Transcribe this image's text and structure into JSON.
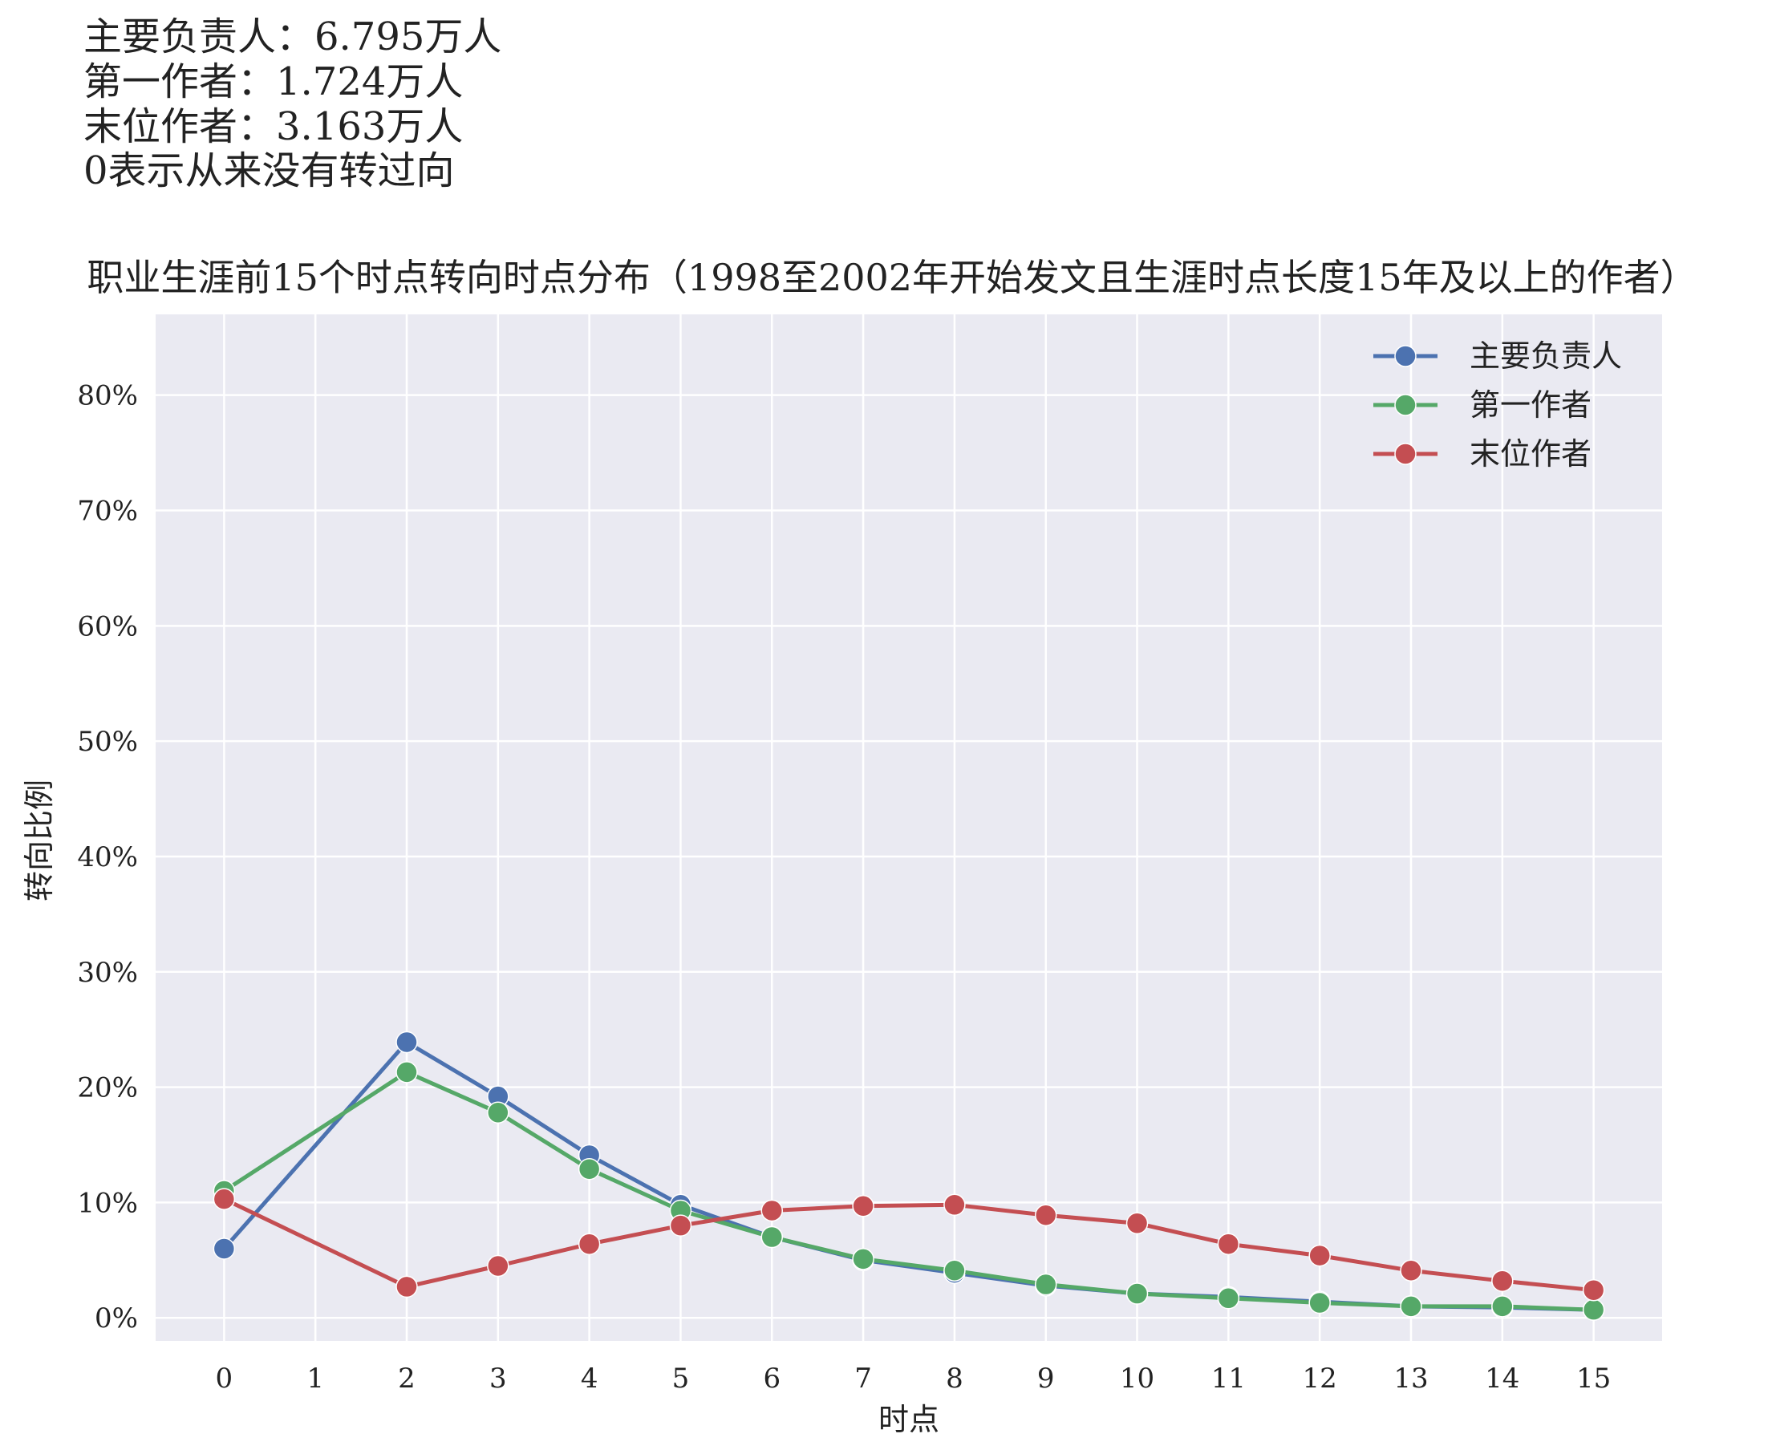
{
  "notes": [
    "主要负责人：6.795万人",
    "第一作者：1.724万人",
    "末位作者：3.163万人",
    "0表示从来没有转过向"
  ],
  "chart_data": {
    "type": "line",
    "title": "职业生涯前15个时点转向时点分布（1998至2002年开始发文且生涯时点长度15年及以上的作者）",
    "xlabel": "时点",
    "ylabel": "转向比例",
    "x": [
      0,
      1,
      2,
      3,
      4,
      5,
      6,
      7,
      8,
      9,
      10,
      11,
      12,
      13,
      14,
      15
    ],
    "x_tick_labels": [
      "0",
      "1",
      "2",
      "3",
      "4",
      "5",
      "6",
      "7",
      "8",
      "9",
      "10",
      "11",
      "12",
      "13",
      "14",
      "15"
    ],
    "xlim": [
      -0.75,
      15.75
    ],
    "ylim": [
      -2,
      87
    ],
    "y_ticks": [
      0,
      10,
      20,
      30,
      40,
      50,
      60,
      70,
      80
    ],
    "y_tick_labels": [
      "0%",
      "10%",
      "20%",
      "30%",
      "40%",
      "50%",
      "60%",
      "70%",
      "80%"
    ],
    "grid": true,
    "legend_position": "top-right",
    "background_color": "#eaeaf2",
    "grid_color": "#ffffff",
    "series": [
      {
        "name": "主要负责人",
        "color": "#4c72b0",
        "points": [
          [
            0,
            6.0
          ],
          [
            2,
            23.9
          ],
          [
            3,
            19.2
          ],
          [
            4,
            14.1
          ],
          [
            5,
            9.8
          ],
          [
            6,
            7.0
          ],
          [
            7,
            5.0
          ],
          [
            8,
            3.9
          ],
          [
            9,
            2.8
          ],
          [
            10,
            2.1
          ],
          [
            11,
            1.8
          ],
          [
            12,
            1.4
          ],
          [
            13,
            1.0
          ],
          [
            14,
            0.9
          ],
          [
            15,
            0.7
          ]
        ]
      },
      {
        "name": "第一作者",
        "color": "#55a868",
        "points": [
          [
            0,
            11.0
          ],
          [
            2,
            21.3
          ],
          [
            3,
            17.8
          ],
          [
            4,
            12.9
          ],
          [
            5,
            9.3
          ],
          [
            6,
            7.0
          ],
          [
            7,
            5.1
          ],
          [
            8,
            4.1
          ],
          [
            9,
            2.9
          ],
          [
            10,
            2.1
          ],
          [
            11,
            1.7
          ],
          [
            12,
            1.3
          ],
          [
            13,
            1.0
          ],
          [
            14,
            1.0
          ],
          [
            15,
            0.7
          ]
        ]
      },
      {
        "name": "末位作者",
        "color": "#c44e52",
        "points": [
          [
            0,
            10.3
          ],
          [
            2,
            2.7
          ],
          [
            3,
            4.5
          ],
          [
            4,
            6.4
          ],
          [
            5,
            8.0
          ],
          [
            6,
            9.3
          ],
          [
            7,
            9.7
          ],
          [
            8,
            9.8
          ],
          [
            9,
            8.9
          ],
          [
            10,
            8.2
          ],
          [
            11,
            6.4
          ],
          [
            12,
            5.4
          ],
          [
            13,
            4.1
          ],
          [
            14,
            3.2
          ],
          [
            15,
            2.4
          ]
        ]
      }
    ]
  }
}
